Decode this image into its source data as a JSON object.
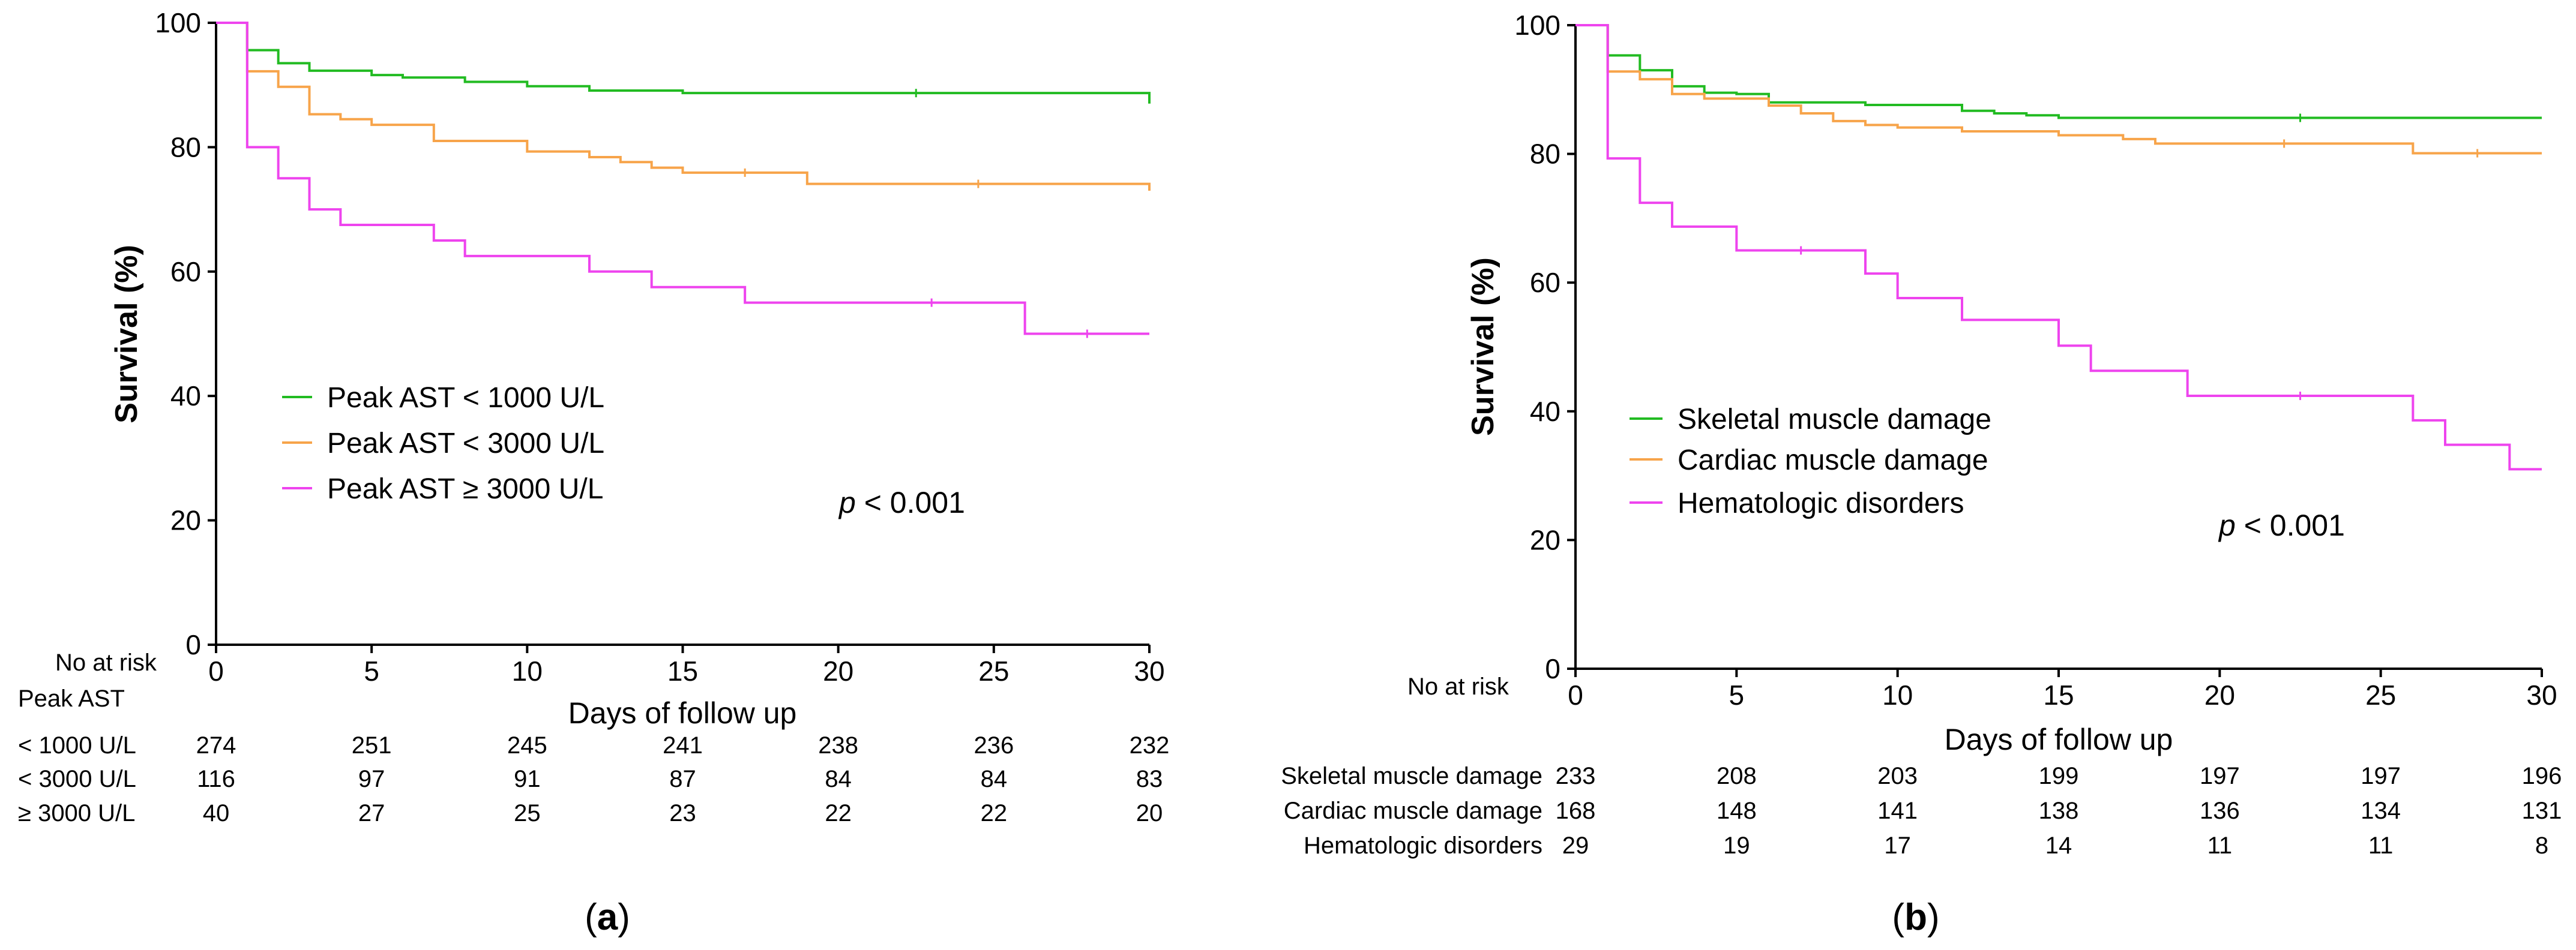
{
  "chart_data": [
    {
      "type": "line",
      "step": true,
      "panel_label": "a",
      "ylabel": "Survival (%)",
      "xlabel": "Days of follow up",
      "xlim": [
        0,
        30
      ],
      "ylim": [
        0,
        100
      ],
      "xticks": [
        0,
        5,
        10,
        15,
        20,
        25,
        30
      ],
      "yticks": [
        0,
        20,
        40,
        60,
        80,
        100
      ],
      "legend_position": "center-left",
      "annotation": {
        "p_symbol": "p",
        "p_rest": " < 0.001"
      },
      "risk_table": {
        "title": "No at risk",
        "group_header": "Peak AST",
        "times": [
          0,
          5,
          10,
          15,
          20,
          25,
          30
        ],
        "rows": [
          {
            "label": "< 1000 U/L",
            "counts": [
              274,
              251,
              245,
              241,
              238,
              236,
              232
            ]
          },
          {
            "label": "< 3000 U/L",
            "counts": [
              116,
              97,
              91,
              87,
              84,
              84,
              83
            ]
          },
          {
            "label": "≥ 3000 U/L",
            "counts": [
              40,
              27,
              25,
              23,
              22,
              22,
              20
            ]
          }
        ]
      },
      "series": [
        {
          "name": "Peak AST < 1000 U/L",
          "color": "#22bb22",
          "x": [
            0,
            1,
            2,
            3,
            4,
            5,
            6,
            7,
            8,
            10,
            12,
            15,
            30
          ],
          "y": [
            100,
            95.6,
            93.5,
            92.3,
            92.3,
            91.6,
            91.2,
            91.2,
            90.5,
            89.8,
            89.1,
            88.7,
            87.0
          ]
        },
        {
          "name": "Peak  AST < 3000 U/L",
          "color": "#f7a44a",
          "x": [
            0,
            1,
            2,
            3,
            4,
            5,
            7,
            9,
            10,
            12,
            13,
            14,
            15,
            19,
            30
          ],
          "y": [
            100,
            92.2,
            89.7,
            85.3,
            84.5,
            83.6,
            81.0,
            81.0,
            79.3,
            78.4,
            77.6,
            76.7,
            75.9,
            74.1,
            73.0
          ]
        },
        {
          "name": "Peak AST ≥ 3000 U/L",
          "color": "#ee44ee",
          "x": [
            0,
            1,
            2,
            3,
            4,
            5,
            7,
            8,
            10,
            12,
            14,
            17,
            20,
            26,
            30
          ],
          "y": [
            100,
            80.0,
            75.0,
            70.0,
            67.5,
            67.5,
            65.0,
            62.5,
            62.5,
            60.0,
            57.5,
            55.0,
            55.0,
            50.0,
            50.0
          ]
        }
      ]
    },
    {
      "type": "line",
      "step": true,
      "panel_label": "b",
      "ylabel": "Survival (%)",
      "xlabel": "Days of follow up",
      "xlim": [
        0,
        30
      ],
      "ylim": [
        0,
        100
      ],
      "xticks": [
        0,
        5,
        10,
        15,
        20,
        25,
        30
      ],
      "yticks": [
        0,
        20,
        40,
        60,
        80,
        100
      ],
      "legend_position": "center-left",
      "annotation": {
        "p_symbol": "p",
        "p_rest": " < 0.001"
      },
      "risk_table": {
        "title": "No at risk",
        "group_header": "",
        "times": [
          0,
          5,
          10,
          15,
          20,
          25,
          30
        ],
        "rows": [
          {
            "label": "Skeletal muscle damage",
            "counts": [
              233,
              208,
              203,
              199,
              197,
              197,
              196
            ]
          },
          {
            "label": "Cardiac muscle damage",
            "counts": [
              168,
              148,
              141,
              138,
              136,
              134,
              131
            ]
          },
          {
            "label": "Hematologic disorders",
            "counts": [
              29,
              19,
              17,
              14,
              11,
              11,
              8
            ]
          }
        ]
      },
      "series": [
        {
          "name": "Skeletal muscle damage",
          "color": "#22bb22",
          "x": [
            0,
            1,
            2,
            3,
            4,
            5,
            6,
            8,
            9,
            10,
            12,
            13,
            14,
            15,
            30
          ],
          "y": [
            100,
            95.3,
            93.0,
            90.5,
            89.5,
            89.3,
            88.0,
            88.0,
            87.6,
            87.6,
            86.7,
            86.3,
            86.0,
            85.6,
            85.6
          ]
        },
        {
          "name": "Cardiac muscle damage",
          "color": "#f7a44a",
          "x": [
            0,
            1,
            2,
            3,
            4,
            6,
            7,
            8,
            9,
            10,
            12,
            15,
            17,
            18,
            26,
            30
          ],
          "y": [
            100,
            92.8,
            91.6,
            89.3,
            88.6,
            87.5,
            86.3,
            85.1,
            84.5,
            84.1,
            83.5,
            82.9,
            82.3,
            81.6,
            80.1,
            80.1
          ]
        },
        {
          "name": "Hematologic disorders",
          "color": "#ee44ee",
          "x": [
            0,
            1,
            2,
            3,
            5,
            9,
            10,
            12,
            15,
            16,
            19,
            26,
            27,
            29,
            30
          ],
          "y": [
            100,
            79.3,
            72.4,
            68.7,
            65.0,
            61.4,
            57.6,
            54.2,
            50.2,
            46.3,
            42.4,
            38.6,
            34.8,
            31.0,
            31.0
          ]
        }
      ]
    }
  ]
}
